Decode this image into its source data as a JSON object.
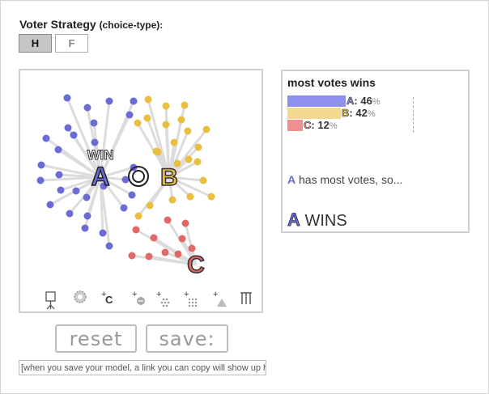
{
  "strategy": {
    "title": "Voter Strategy",
    "subtitle": "(choice-type):",
    "options": [
      "H",
      "F"
    ],
    "selected": "H"
  },
  "simulation": {
    "candidates": [
      {
        "letter": "A",
        "color": "#6b6bd6"
      },
      {
        "letter": "B",
        "color": "#e9bf3f"
      },
      {
        "letter": "C",
        "color": "#e26767"
      }
    ],
    "win_label": "WIN",
    "tools": [
      "plant-tool-icon",
      "settings-gear-icon",
      "add-candidate-icon",
      "add-voter-icon",
      "add-voter-group-icon",
      "add-voter-grid-icon",
      "add-triangle-icon",
      "columns-icon"
    ],
    "tool_texts": {
      "add_candidate": "C"
    }
  },
  "result": {
    "title": "most votes wins",
    "bars": [
      {
        "cand": "A",
        "value": 46,
        "pct": "%",
        "color": "#8f8ff0"
      },
      {
        "cand": "B",
        "value": 42,
        "pct": "%",
        "color": "#f3d98f"
      },
      {
        "cand": "C",
        "value": 12,
        "pct": "%",
        "color": "#ef8f8f"
      }
    ],
    "most_text_cand": "A",
    "most_text": " has most votes, so...",
    "winner": "A",
    "winner_text": " WINS"
  },
  "buttons": {
    "reset": "reset",
    "save": "save:"
  },
  "save_box": "[when you save your model, a link you can copy will show up here]"
}
